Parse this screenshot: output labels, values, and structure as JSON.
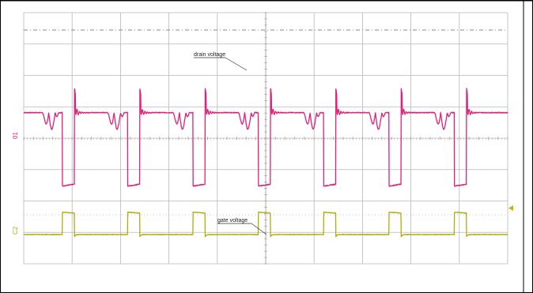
{
  "chart_data": {
    "type": "line",
    "grid": true,
    "colors": {
      "drain": "#e0207a",
      "gate": "#b0ac10",
      "grid": "#b8b8b8",
      "marker": "#c8b400"
    },
    "annotations": {
      "drain": "drain voltage",
      "gate": "gate voltage"
    },
    "channel_labels": {
      "drain": "01",
      "gate": "C2"
    },
    "period_divisions": 1.35,
    "divisions_x": 10,
    "divisions_y": 8,
    "pulse_starts": [
      0.8,
      2.15,
      3.5,
      4.85,
      6.2,
      7.55,
      8.9
    ],
    "series": [
      {
        "id": "drain",
        "levels": {
          "high": 0.84,
          "low": -1.5,
          "spike": 1.6
        },
        "on_width_divisions": 0.25
      },
      {
        "id": "gate",
        "levels": {
          "high": 1.25,
          "low": 0
        },
        "on_width_divisions": 0.25
      }
    ]
  }
}
